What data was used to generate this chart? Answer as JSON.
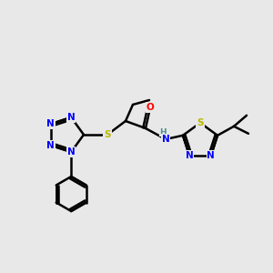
{
  "bg_color": "#e8e8e8",
  "atom_colors": {
    "N": "#0000ff",
    "S": "#b8b800",
    "O": "#ff0000",
    "H": "#4a9090",
    "C": "#000000"
  },
  "bond_color": "#000000",
  "bond_width": 1.8,
  "figsize": [
    3.0,
    3.0
  ],
  "dpi": 100,
  "xlim": [
    0,
    300
  ],
  "ylim": [
    0,
    300
  ]
}
